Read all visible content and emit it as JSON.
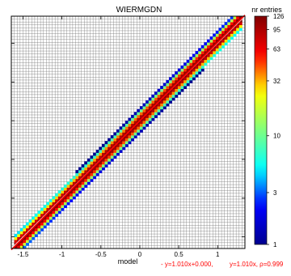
{
  "chart_data": {
    "type": "heatmap",
    "title": "WIERMGDN",
    "xlabel": "model",
    "ylabel": "",
    "xlim": [
      -1.65,
      1.35
    ],
    "ylim": [
      -1.65,
      1.35
    ],
    "x_ticks": [
      -1.5,
      -1,
      -0.5,
      0,
      0.5,
      1
    ],
    "x_tick_labels": [
      "-1.5",
      "-1",
      "-0.5",
      "0",
      "0.5",
      "1"
    ],
    "y_ticks": [
      -1.5,
      -1,
      -0.5,
      0,
      0.5,
      1
    ],
    "y_tick_labels": [
      "",
      "",
      "",
      "",
      "",
      ""
    ],
    "grid": true,
    "bins": 80,
    "colorbar": {
      "label": "nr entries",
      "ticks": [
        126,
        95,
        63,
        32,
        10,
        3,
        1
      ],
      "tick_labels": [
        "126",
        "95",
        "63",
        "32",
        "10",
        "3",
        "1"
      ],
      "max": 126,
      "colors": [
        "#00008f",
        "#0000ff",
        "#00ffff",
        "#7fff7f",
        "#ffff00",
        "#ff0000",
        "#800000"
      ]
    },
    "fit_lines": [
      {
        "label": "- y=1.010x+0.000,",
        "slope": 1.01,
        "intercept": 0.0,
        "color": "#ff0000"
      },
      {
        "label": "y=1.010x, ρ=0.999",
        "slope": 1.01,
        "intercept": 0.0,
        "color": "#ff0000"
      }
    ],
    "diagonal": {
      "slope": 1,
      "intercept": 0,
      "color": "#ffffff"
    },
    "band": {
      "slope": 1.01,
      "intercept": 0.0,
      "x_range": [
        -1.62,
        1.32
      ],
      "sigma": 0.035,
      "peak": 126
    }
  }
}
